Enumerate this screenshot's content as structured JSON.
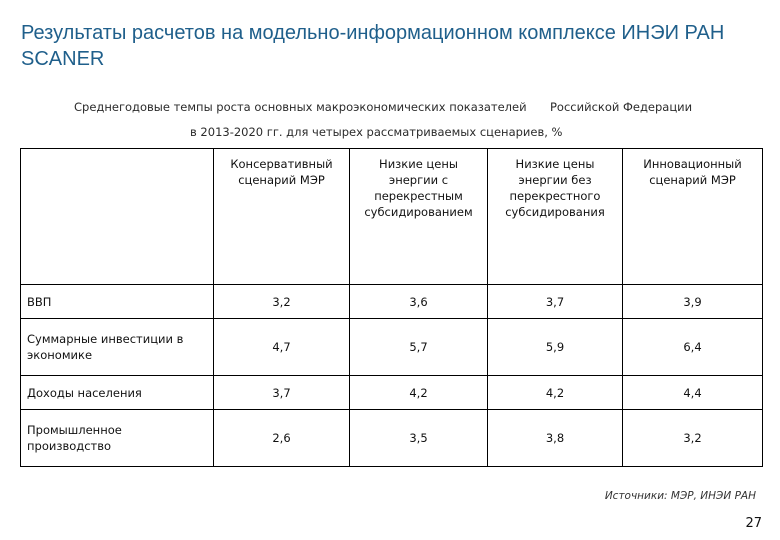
{
  "title": "Результаты расчетов на модельно-информационном комплексе ИНЭИ РАН SCANER",
  "subtitle": {
    "line1_part1": "Среднегодовые темпы роста основных макроэкономических показателей",
    "line1_part2": "Российской Федерации",
    "line2": "в 2013-2020 гг. для четырех рассматриваемых сценариев, %"
  },
  "table": {
    "corner": "",
    "headers": [
      "Консервативный сценарий МЭР",
      "Низкие цены энергии с перекрестным субсидированием",
      "Низкие цены энергии без перекрестного субсидирования",
      "Инновационный сценарий МЭР"
    ],
    "rows": [
      {
        "label": "ВВП",
        "values": [
          "3,2",
          "3,6",
          "3,7",
          "3,9"
        ]
      },
      {
        "label": "Суммарные инвестиции в экономике",
        "values": [
          "4,7",
          "5,7",
          "5,9",
          "6,4"
        ]
      },
      {
        "label": "Доходы населения",
        "values": [
          "3,7",
          "4,2",
          "4,2",
          "4,4"
        ]
      },
      {
        "label": "Промышленное производство",
        "values": [
          "2,6",
          "3,5",
          "3,8",
          "3,2"
        ]
      }
    ]
  },
  "source": "Источники: МЭР, ИНЭИ РАН",
  "page_number": "27",
  "colors": {
    "title": "#1f5f8b",
    "text": "#111111",
    "border": "#000000"
  }
}
